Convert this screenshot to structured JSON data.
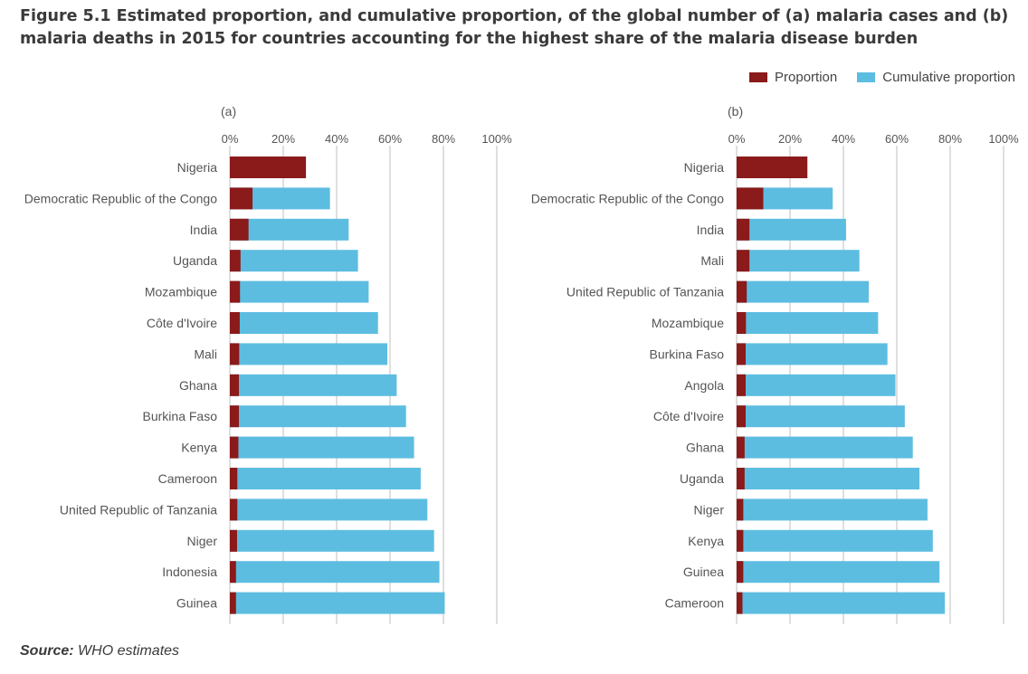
{
  "title": "Figure 5.1 Estimated proportion, and cumulative proportion, of the global number of (a) malaria cases and (b) malaria deaths in 2015 for countries accounting for the highest share of the malaria disease burden",
  "legend": {
    "proportion": "Proportion",
    "cumulative": "Cumulative proportion"
  },
  "colors": {
    "proportion": "#8b1a1a",
    "cumulative": "#5dbde1",
    "grid": "#bfbfbf",
    "text": "#555555"
  },
  "source": {
    "label": "Source:",
    "text": "WHO estimates"
  },
  "chart_data": [
    {
      "type": "bar",
      "panel_label": "(a)",
      "orientation": "horizontal-stacked",
      "xlim": [
        0,
        100
      ],
      "xticks": [
        "0%",
        "20%",
        "40%",
        "60%",
        "80%",
        "100%"
      ],
      "categories": [
        "Nigeria",
        "Democratic Republic of the Congo",
        "India",
        "Uganda",
        "Mozambique",
        "Côte d'Ivoire",
        "Mali",
        "Ghana",
        "Burkina Faso",
        "Kenya",
        "Cameroon",
        "United Republic of Tanzania",
        "Niger",
        "Indonesia",
        "Guinea"
      ],
      "series": [
        {
          "name": "Proportion",
          "values": [
            28.5,
            8.5,
            7,
            4,
            3.8,
            3.7,
            3.5,
            3.4,
            3.4,
            3.2,
            2.8,
            2.8,
            2.7,
            2.3,
            2.3
          ]
        },
        {
          "name": "Cumulative proportion",
          "values": [
            28.5,
            37.5,
            44.5,
            48,
            52,
            55.5,
            59,
            62.5,
            66,
            69,
            71.5,
            74,
            76.5,
            78.5,
            80.5
          ]
        }
      ]
    },
    {
      "type": "bar",
      "panel_label": "(b)",
      "orientation": "horizontal-stacked",
      "xlim": [
        0,
        100
      ],
      "xticks": [
        "0%",
        "20%",
        "40%",
        "60%",
        "80%",
        "100%"
      ],
      "categories": [
        "Nigeria",
        "Democratic Republic of the Congo",
        "India",
        "Mali",
        "United Republic of Tanzania",
        "Mozambique",
        "Burkina Faso",
        "Angola",
        "Côte d'Ivoire",
        "Ghana",
        "Uganda",
        "Niger",
        "Kenya",
        "Guinea",
        "Cameroon"
      ],
      "series": [
        {
          "name": "Proportion",
          "values": [
            26.5,
            10,
            4.8,
            4.8,
            3.8,
            3.5,
            3.4,
            3.4,
            3.4,
            3,
            3,
            2.5,
            2.5,
            2.5,
            2.2
          ]
        },
        {
          "name": "Cumulative proportion",
          "values": [
            26.5,
            36,
            41,
            46,
            49.5,
            53,
            56.5,
            59.5,
            63,
            66,
            68.5,
            71.5,
            73.5,
            76,
            78
          ]
        }
      ]
    }
  ]
}
